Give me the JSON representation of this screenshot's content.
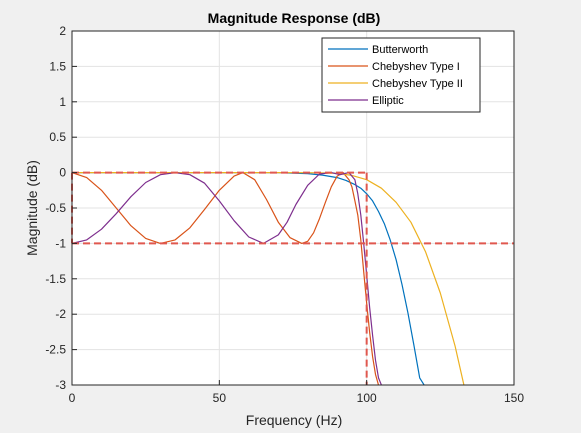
{
  "chart_data": {
    "type": "line",
    "title": "Magnitude Response (dB)",
    "xlabel": "Frequency (Hz)",
    "ylabel": "Magnitude (dB)",
    "xlim": [
      0,
      150
    ],
    "ylim": [
      -3,
      2
    ],
    "xticks": [
      0,
      50,
      100,
      150
    ],
    "xtick_labels": [
      "0",
      "50",
      "100",
      "150"
    ],
    "yticks": [
      2,
      1.5,
      1,
      0.5,
      0,
      -0.5,
      -1,
      -1.5,
      -2,
      -2.5,
      -3
    ],
    "ytick_labels": [
      "2",
      "1.5",
      "1",
      "0.5",
      "0",
      "-0.5",
      "-1",
      "-1.5",
      "-2",
      "-2.5",
      "-3"
    ],
    "grid": true,
    "legend_position": "top-right",
    "series": [
      {
        "name": "Butterworth",
        "color": "#0072BD",
        "x": [
          0,
          10,
          20,
          30,
          40,
          50,
          60,
          70,
          80,
          85,
          90,
          93,
          96,
          98,
          100,
          102,
          104,
          106,
          108,
          110,
          112,
          114,
          116,
          118,
          119.5
        ],
        "values": [
          0,
          0,
          0,
          0,
          0,
          0,
          0,
          -0.002,
          -0.015,
          -0.035,
          -0.07,
          -0.11,
          -0.17,
          -0.22,
          -0.3,
          -0.4,
          -0.55,
          -0.72,
          -0.95,
          -1.23,
          -1.58,
          -1.98,
          -2.43,
          -2.9,
          -3.0
        ]
      },
      {
        "name": "Chebyshev Type I",
        "color": "#D95319",
        "x": [
          0,
          5,
          10,
          15,
          20,
          25,
          30,
          35,
          40,
          45,
          50,
          55,
          58,
          62,
          66,
          70,
          74,
          78,
          80,
          82,
          84,
          86,
          88,
          90,
          92,
          94,
          95,
          96,
          97,
          98,
          99,
          100,
          101,
          102,
          103,
          104
        ],
        "values": [
          0,
          -0.07,
          -0.25,
          -0.5,
          -0.75,
          -0.93,
          -1.0,
          -0.95,
          -0.78,
          -0.52,
          -0.25,
          -0.05,
          0,
          -0.1,
          -0.38,
          -0.7,
          -0.92,
          -1.0,
          -0.97,
          -0.85,
          -0.65,
          -0.42,
          -0.2,
          -0.05,
          0,
          -0.1,
          -0.2,
          -0.4,
          -0.6,
          -0.95,
          -1.4,
          -1.85,
          -2.25,
          -2.6,
          -2.85,
          -3.0
        ]
      },
      {
        "name": "Chebyshev Type II",
        "color": "#EDB120",
        "x": [
          0,
          20,
          40,
          60,
          70,
          80,
          85,
          90,
          95,
          100,
          105,
          110,
          115,
          120,
          125,
          130,
          133
        ],
        "values": [
          0,
          0,
          0,
          0,
          0,
          -0.002,
          -0.005,
          -0.01,
          -0.04,
          -0.1,
          -0.22,
          -0.42,
          -0.7,
          -1.12,
          -1.7,
          -2.45,
          -3.0
        ]
      },
      {
        "name": "Elliptic",
        "color": "#7E2F8E",
        "x": [
          0,
          5,
          10,
          15,
          20,
          25,
          30,
          35,
          40,
          45,
          50,
          55,
          60,
          65,
          70,
          73,
          76,
          80,
          84,
          88,
          91,
          94,
          96,
          97,
          98,
          99,
          100,
          101,
          102,
          103,
          104,
          105
        ],
        "values": [
          -1.0,
          -0.95,
          -0.8,
          -0.58,
          -0.34,
          -0.14,
          -0.03,
          0,
          -0.03,
          -0.15,
          -0.4,
          -0.68,
          -0.91,
          -1.0,
          -0.88,
          -0.7,
          -0.45,
          -0.18,
          -0.02,
          0,
          -0.03,
          0,
          -0.1,
          -0.3,
          -0.6,
          -1.0,
          -1.45,
          -1.9,
          -2.3,
          -2.65,
          -2.9,
          -3.0
        ]
      }
    ],
    "spec_lines": {
      "color": "#E0584F",
      "style": "dashed",
      "segments": [
        {
          "x": [
            0,
            100
          ],
          "y": [
            0,
            0
          ]
        },
        {
          "x": [
            0,
            150
          ],
          "y": [
            -1,
            -1
          ]
        },
        {
          "x": [
            0,
            0
          ],
          "y": [
            0,
            -1
          ]
        },
        {
          "x": [
            100,
            100
          ],
          "y": [
            0,
            -3
          ]
        }
      ]
    }
  }
}
